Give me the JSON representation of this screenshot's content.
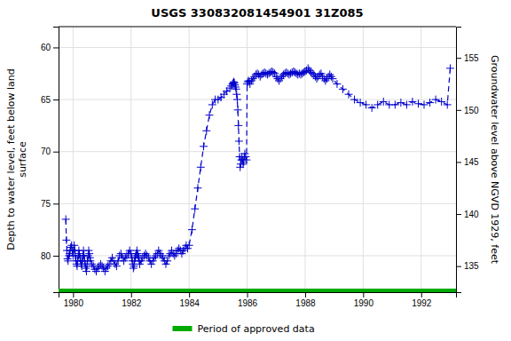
{
  "chart_data": {
    "type": "line",
    "title": "USGS 330832081454901 31Z085",
    "ylabel": "Depth to water level, feet below land\n surface",
    "y2label": "Groundwater level above NGVD 1929, feet",
    "xlim": [
      1979.5,
      1993.2
    ],
    "ylim": [
      83.5,
      58.0
    ],
    "y2lim": [
      132.5,
      158.0
    ],
    "yticks": [
      60,
      65,
      70,
      75,
      80
    ],
    "y2ticks": [
      155,
      150,
      145,
      140,
      135
    ],
    "xticks": [
      1980,
      1982,
      1984,
      1986,
      1988,
      1990,
      1992
    ],
    "grid": true,
    "legend": "bottom",
    "series": [
      {
        "color": "#0000cc",
        "marker": "plus",
        "line_style": "dashed",
        "x": [
          1979.75,
          1979.77,
          1979.79,
          1979.81,
          1979.83,
          1979.86,
          1979.88,
          1979.9,
          1979.92,
          1979.95,
          1979.97,
          1980.0,
          1980.02,
          1980.04,
          1980.06,
          1980.08,
          1980.1,
          1980.12,
          1980.14,
          1980.16,
          1980.18,
          1980.2,
          1980.22,
          1980.24,
          1980.26,
          1980.28,
          1980.3,
          1980.32,
          1980.34,
          1980.36,
          1980.38,
          1980.4,
          1980.42,
          1980.44,
          1980.46,
          1980.48,
          1980.5,
          1980.52,
          1980.54,
          1980.56,
          1980.58,
          1980.6,
          1980.65,
          1980.7,
          1980.75,
          1980.8,
          1980.85,
          1980.9,
          1980.95,
          1981.0,
          1981.05,
          1981.1,
          1981.15,
          1981.2,
          1981.25,
          1981.3,
          1981.35,
          1981.4,
          1981.45,
          1981.5,
          1981.55,
          1981.6,
          1981.65,
          1981.7,
          1981.75,
          1981.8,
          1981.85,
          1981.9,
          1981.95,
          1982.0,
          1982.02,
          1982.04,
          1982.06,
          1982.08,
          1982.1,
          1982.12,
          1982.14,
          1982.16,
          1982.18,
          1982.2,
          1982.22,
          1982.24,
          1982.26,
          1982.28,
          1982.3,
          1982.35,
          1982.4,
          1982.45,
          1982.5,
          1982.55,
          1982.6,
          1982.65,
          1982.7,
          1982.75,
          1982.8,
          1982.85,
          1982.9,
          1982.95,
          1983.0,
          1983.05,
          1983.1,
          1983.15,
          1983.2,
          1983.25,
          1983.3,
          1983.35,
          1983.4,
          1983.45,
          1983.5,
          1983.55,
          1983.6,
          1983.65,
          1983.7,
          1983.75,
          1983.8,
          1983.85,
          1983.9,
          1983.95,
          1984.0,
          1984.1,
          1984.2,
          1984.3,
          1984.4,
          1984.5,
          1984.6,
          1984.7,
          1984.8,
          1984.9,
          1985.0,
          1985.1,
          1985.2,
          1985.3,
          1985.4,
          1985.45,
          1985.5,
          1985.52,
          1985.54,
          1985.56,
          1985.58,
          1985.6,
          1985.62,
          1985.64,
          1985.66,
          1985.68,
          1985.7,
          1985.72,
          1985.74,
          1985.76,
          1985.78,
          1985.8,
          1985.82,
          1985.84,
          1985.86,
          1985.88,
          1985.9,
          1985.92,
          1985.95,
          1985.98,
          1986.0,
          1986.02,
          1986.05,
          1986.08,
          1986.1,
          1986.15,
          1986.2,
          1986.25,
          1986.3,
          1986.35,
          1986.4,
          1986.45,
          1986.5,
          1986.55,
          1986.6,
          1986.65,
          1986.7,
          1986.75,
          1986.8,
          1986.85,
          1986.9,
          1986.95,
          1987.0,
          1987.05,
          1987.1,
          1987.15,
          1987.2,
          1987.25,
          1987.3,
          1987.35,
          1987.4,
          1987.45,
          1987.5,
          1987.55,
          1987.6,
          1987.65,
          1987.7,
          1987.75,
          1987.8,
          1987.85,
          1987.9,
          1987.95,
          1988.0,
          1988.05,
          1988.1,
          1988.15,
          1988.2,
          1988.25,
          1988.3,
          1988.35,
          1988.4,
          1988.45,
          1988.5,
          1988.55,
          1988.6,
          1988.65,
          1988.7,
          1988.75,
          1988.8,
          1988.85,
          1988.9,
          1988.95,
          1989.1,
          1989.3,
          1989.5,
          1989.7,
          1989.9,
          1990.1,
          1990.3,
          1990.5,
          1990.7,
          1990.9,
          1991.1,
          1991.3,
          1991.5,
          1991.7,
          1991.9,
          1992.1,
          1992.3,
          1992.5,
          1992.7,
          1992.9,
          1993.0
        ],
        "values": [
          76.5,
          78.5,
          79.5,
          80.3,
          80.5,
          80.0,
          79.8,
          79.5,
          79.2,
          79.0,
          79.5,
          80.0,
          79.5,
          79.0,
          79.5,
          80.0,
          80.5,
          80.8,
          81.0,
          80.5,
          80.0,
          79.5,
          79.8,
          80.2,
          80.5,
          80.8,
          81.0,
          80.5,
          80.0,
          79.5,
          80.0,
          80.5,
          80.8,
          81.2,
          81.5,
          81.0,
          80.5,
          80.0,
          79.5,
          79.8,
          80.2,
          80.5,
          80.8,
          81.0,
          81.3,
          81.5,
          81.2,
          81.0,
          80.8,
          81.0,
          81.2,
          81.5,
          81.2,
          81.0,
          80.8,
          80.5,
          80.2,
          80.5,
          80.8,
          81.0,
          80.5,
          80.0,
          79.8,
          80.2,
          80.5,
          80.2,
          80.0,
          79.8,
          79.5,
          79.8,
          80.2,
          80.5,
          80.8,
          81.2,
          81.0,
          80.5,
          80.2,
          80.0,
          79.8,
          79.5,
          79.8,
          80.0,
          80.2,
          80.5,
          80.8,
          80.5,
          80.2,
          80.0,
          79.8,
          80.0,
          80.2,
          80.5,
          80.8,
          80.5,
          80.2,
          80.0,
          79.8,
          79.5,
          79.8,
          80.0,
          80.2,
          80.5,
          80.8,
          80.5,
          80.0,
          79.8,
          79.5,
          79.8,
          80.0,
          79.8,
          79.5,
          79.3,
          79.5,
          79.8,
          79.5,
          79.3,
          79.0,
          79.3,
          79.0,
          77.5,
          75.5,
          73.5,
          71.5,
          69.5,
          68.0,
          66.5,
          65.5,
          65.0,
          65.0,
          64.8,
          64.5,
          64.2,
          63.9,
          63.7,
          63.5,
          63.4,
          63.3,
          63.4,
          63.6,
          63.8,
          64.0,
          64.5,
          65.0,
          66.0,
          67.5,
          69.0,
          70.5,
          71.5,
          71.2,
          70.8,
          70.5,
          70.8,
          71.2,
          71.0,
          70.5,
          70.2,
          70.5,
          70.8,
          63.5,
          63.3,
          63.2,
          63.3,
          63.5,
          63.2,
          63.0,
          62.8,
          62.6,
          62.5,
          62.6,
          62.8,
          62.6,
          62.5,
          62.4,
          62.5,
          62.6,
          62.5,
          62.4,
          62.3,
          62.4,
          62.5,
          62.8,
          63.0,
          63.2,
          63.0,
          62.8,
          62.6,
          62.5,
          62.4,
          62.5,
          62.6,
          62.5,
          62.4,
          62.3,
          62.4,
          62.5,
          62.6,
          62.5,
          62.6,
          62.5,
          62.4,
          62.3,
          62.2,
          62.0,
          62.2,
          62.4,
          62.5,
          62.6,
          62.8,
          63.0,
          62.8,
          62.6,
          62.5,
          62.8,
          63.0,
          63.2,
          63.0,
          62.8,
          62.6,
          62.8,
          63.0,
          63.5,
          64.0,
          64.5,
          65.0,
          65.3,
          65.5,
          65.8,
          65.5,
          65.2,
          65.5,
          65.5,
          65.3,
          65.5,
          65.2,
          65.4,
          65.5,
          65.3,
          65.0,
          65.2,
          65.5,
          62.0
        ]
      },
      {
        "name": "Period of approved data",
        "type": "band",
        "color": "#00aa00",
        "line_style": "solid",
        "x": [
          1979.5,
          1993.2
        ],
        "values": [
          83.5,
          83.5
        ]
      }
    ]
  }
}
